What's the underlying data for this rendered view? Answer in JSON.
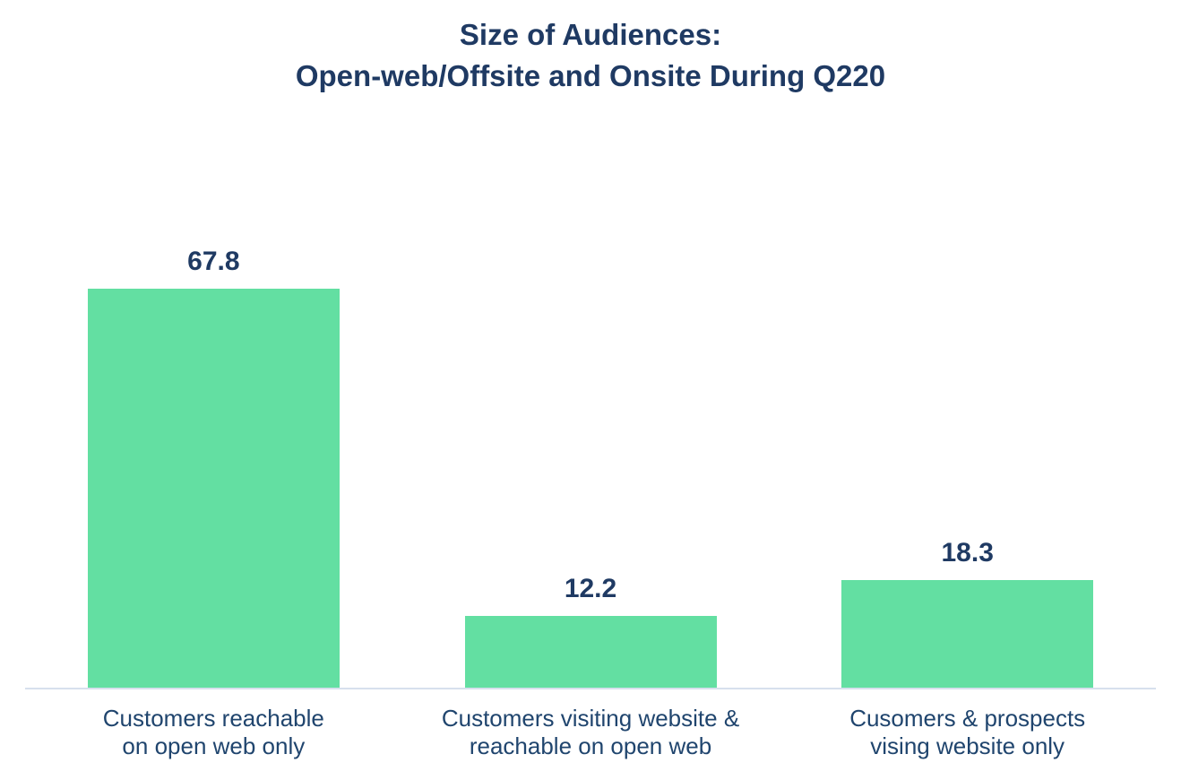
{
  "title": {
    "line1": "Size of Audiences:",
    "line2": "Open-web/Offsite and Onsite During Q220"
  },
  "chart_data": {
    "type": "bar",
    "title": "Size of Audiences: Open-web/Offsite and Onsite During Q220",
    "categories": [
      "Customers reachable on open web only",
      "Customers visiting website & reachable on open web",
      "Cusomers & prospects vising website only"
    ],
    "values": [
      67.8,
      12.2,
      18.3
    ],
    "value_labels": [
      "67.8",
      "12.2",
      "18.3"
    ],
    "xlabel": "",
    "ylabel": "",
    "ylim": [
      0,
      94
    ],
    "grid": false,
    "legend": false,
    "orientation": "vertical",
    "bar_color": "#63DFA2"
  },
  "bars": [
    {
      "value_label": "67.8",
      "label_line1": "Customers reachable",
      "label_line2": "on open web only"
    },
    {
      "value_label": "12.2",
      "label_line1": "Customers visiting website &",
      "label_line2": "reachable on open web"
    },
    {
      "value_label": "18.3",
      "label_line1": "Cusomers & prospects",
      "label_line2": "vising website only"
    }
  ],
  "colors": {
    "bar": "#63DFA2",
    "title_text": "#1F3A63",
    "value_text": "#1F3A63",
    "category_text": "#20456E",
    "axis_line": "#D7E0ED",
    "background": "#FFFFFF"
  }
}
